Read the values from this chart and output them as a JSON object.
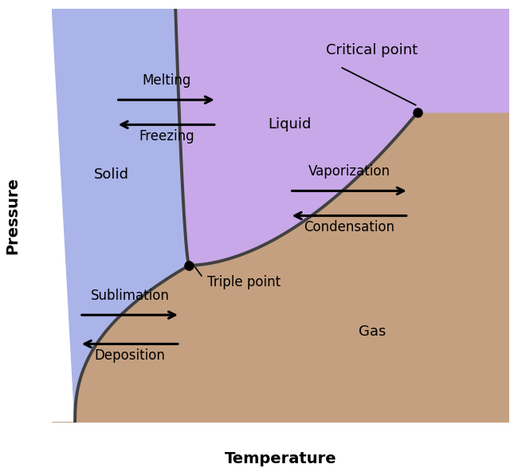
{
  "xlabel": "Temperature",
  "ylabel": "Pressure",
  "bg_color": "#ffffff",
  "solid_color": "#aab4e8",
  "liquid_color": "#c8a8e8",
  "gas_color": "#c4a080",
  "line_color": "#404040",
  "line_width": 2.8,
  "triple_point": [
    0.3,
    0.38
  ],
  "critical_point": [
    0.8,
    0.75
  ],
  "label_fontsize": 13,
  "axis_label_fontsize": 14,
  "axis_label_fontweight": "bold"
}
